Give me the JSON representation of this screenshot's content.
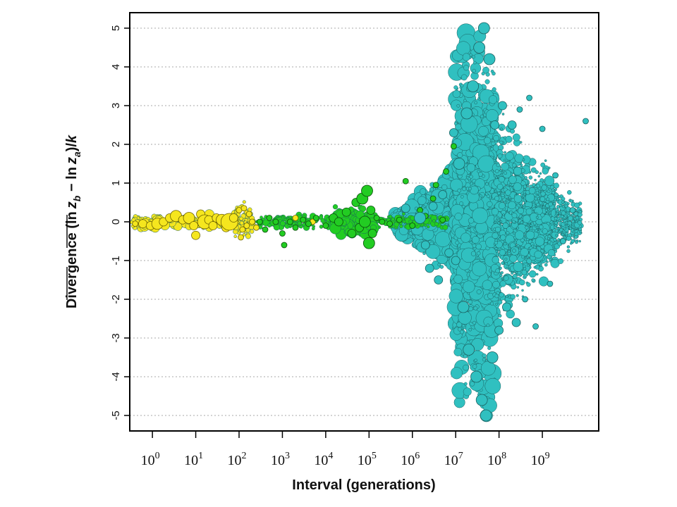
{
  "chart_data": {
    "type": "scatter",
    "xlabel": "Interval (generations)",
    "ylabel": "Divergence (ln z_b − ln z_a)/k",
    "ylabel_parts": {
      "prefix": "Divergence (",
      "ln_b": "ln",
      "z_b": "z",
      "sub_b": "b",
      "minus": " − ",
      "ln_a": "ln",
      "z_a": "z",
      "sub_a": "a",
      "suffix": ")/",
      "k": "k"
    },
    "x_scale": "log10",
    "xlim": [
      0.3,
      20000000000
    ],
    "ylim": [
      -5.4,
      5.4
    ],
    "x_ticks": [
      {
        "base": "10",
        "exp": "0",
        "value": 1
      },
      {
        "base": "10",
        "exp": "1",
        "value": 10
      },
      {
        "base": "10",
        "exp": "2",
        "value": 100
      },
      {
        "base": "10",
        "exp": "3",
        "value": 1000
      },
      {
        "base": "10",
        "exp": "4",
        "value": 10000
      },
      {
        "base": "10",
        "exp": "5",
        "value": 100000
      },
      {
        "base": "10",
        "exp": "6",
        "value": 1000000
      },
      {
        "base": "10",
        "exp": "7",
        "value": 10000000
      },
      {
        "base": "10",
        "exp": "8",
        "value": 100000000
      },
      {
        "base": "10",
        "exp": "9",
        "value": 1000000000
      }
    ],
    "y_ticks": [
      "5",
      "4",
      "3",
      "2",
      "1",
      "0",
      "-1",
      "-2",
      "-3",
      "-4",
      "-5"
    ],
    "grid": "horizontal dotted",
    "legend": "none",
    "series": [
      {
        "color": "#f5e61e",
        "points": [
          [
            0.4,
            -0.05,
            2
          ],
          [
            0.6,
            -0.05,
            3
          ],
          [
            0.9,
            -0.1,
            3
          ],
          [
            1.3,
            -0.05,
            4
          ],
          [
            1.8,
            0.0,
            3
          ],
          [
            2.5,
            0.1,
            3
          ],
          [
            3.5,
            0.15,
            4
          ],
          [
            5,
            0.05,
            3
          ],
          [
            7,
            0.1,
            4
          ],
          [
            9,
            -0.1,
            3
          ],
          [
            10,
            -0.35,
            3
          ],
          [
            13,
            0.2,
            3
          ],
          [
            16,
            0.0,
            5
          ],
          [
            20,
            0.05,
            3
          ],
          [
            25,
            -0.1,
            3
          ],
          [
            30,
            0.1,
            3
          ],
          [
            40,
            0.05,
            4
          ],
          [
            50,
            -0.15,
            3
          ],
          [
            60,
            0.0,
            6
          ],
          [
            75,
            0.1,
            3
          ],
          [
            100,
            0.3,
            2
          ],
          [
            110,
            -0.4,
            2
          ],
          [
            120,
            -0.2,
            2
          ],
          [
            130,
            0.35,
            2
          ],
          [
            150,
            -0.1,
            2
          ],
          [
            170,
            0.2,
            2
          ],
          [
            200,
            0.0,
            2
          ],
          [
            250,
            -0.15,
            2
          ],
          [
            2000,
            0.1,
            2
          ],
          [
            5000,
            0.0,
            2
          ]
        ]
      },
      {
        "color": "#22cc22",
        "points": [
          [
            300,
            0.0,
            2
          ],
          [
            400,
            -0.2,
            2
          ],
          [
            500,
            0.1,
            2
          ],
          [
            700,
            0.0,
            2
          ],
          [
            1000,
            -0.3,
            2
          ],
          [
            1100,
            -0.6,
            2
          ],
          [
            1500,
            0.0,
            2
          ],
          [
            2000,
            -0.15,
            2
          ],
          [
            3000,
            0.05,
            2
          ],
          [
            4000,
            -0.05,
            2
          ],
          [
            6000,
            0.1,
            2
          ],
          [
            10000,
            -0.1,
            2
          ],
          [
            15000,
            0.1,
            3
          ],
          [
            20000,
            0.0,
            3
          ],
          [
            30000,
            0.25,
            3
          ],
          [
            40000,
            -0.3,
            3
          ],
          [
            50000,
            0.5,
            3
          ],
          [
            60000,
            -0.15,
            3
          ],
          [
            70000,
            0.6,
            4
          ],
          [
            80000,
            0.0,
            4
          ],
          [
            90000,
            0.8,
            4
          ],
          [
            100000,
            -0.55,
            4
          ],
          [
            110000,
            0.3,
            3
          ],
          [
            120000,
            -0.3,
            3
          ],
          [
            150000,
            0.1,
            2
          ],
          [
            200000,
            0.0,
            2
          ],
          [
            300000,
            -0.05,
            2
          ],
          [
            500000,
            0.05,
            2
          ],
          [
            700000,
            1.05,
            2
          ],
          [
            1000000,
            -0.1,
            2
          ],
          [
            1500000,
            0.3,
            2
          ],
          [
            2000000,
            0.15,
            2
          ],
          [
            3000000,
            0.6,
            2
          ],
          [
            3500000,
            0.95,
            2
          ],
          [
            5000000,
            0.05,
            2
          ],
          [
            6000000,
            1.3,
            2
          ],
          [
            9000000,
            1.95,
            2
          ]
        ]
      },
      {
        "color": "#30c0c0",
        "points": [
          [
            700000,
            0.35,
            3
          ],
          [
            1500000,
            0.1,
            4
          ],
          [
            2000000,
            -0.6,
            3
          ],
          [
            2500000,
            -1.2,
            3
          ],
          [
            3000000,
            0.4,
            3
          ],
          [
            4000000,
            -1.5,
            3
          ],
          [
            5000000,
            0.7,
            3
          ],
          [
            7000000,
            -0.8,
            3
          ],
          [
            9000000,
            2.3,
            3
          ],
          [
            10000000,
            -1.0,
            3
          ],
          [
            12000000,
            1.5,
            4
          ],
          [
            15000000,
            -2.2,
            4
          ],
          [
            18000000,
            2.8,
            4
          ],
          [
            20000000,
            -3.3,
            4
          ],
          [
            25000000,
            3.5,
            4
          ],
          [
            30000000,
            -4.0,
            4
          ],
          [
            35000000,
            4.5,
            4
          ],
          [
            40000000,
            -4.6,
            4
          ],
          [
            45000000,
            5.0,
            4
          ],
          [
            50000000,
            -5.0,
            4
          ],
          [
            60000000,
            4.2,
            4
          ],
          [
            70000000,
            -3.5,
            4
          ],
          [
            80000000,
            2.5,
            3
          ],
          [
            100000000,
            -2.8,
            3
          ],
          [
            120000000,
            3.0,
            3
          ],
          [
            150000000,
            -2.2,
            3
          ],
          [
            200000000,
            2.5,
            3
          ],
          [
            250000000,
            -2.6,
            3
          ],
          [
            300000000,
            2.9,
            2
          ],
          [
            400000000,
            -2.0,
            2
          ],
          [
            500000000,
            3.2,
            2
          ],
          [
            700000000,
            -2.7,
            2
          ],
          [
            1000000000,
            2.4,
            2
          ],
          [
            1500000000,
            -1.6,
            2
          ],
          [
            2000000000,
            1.2,
            2
          ],
          [
            3000000000,
            -0.5,
            2
          ],
          [
            5000000000,
            0.3,
            2
          ],
          [
            10000000000,
            2.6,
            2
          ]
        ]
      }
    ]
  }
}
